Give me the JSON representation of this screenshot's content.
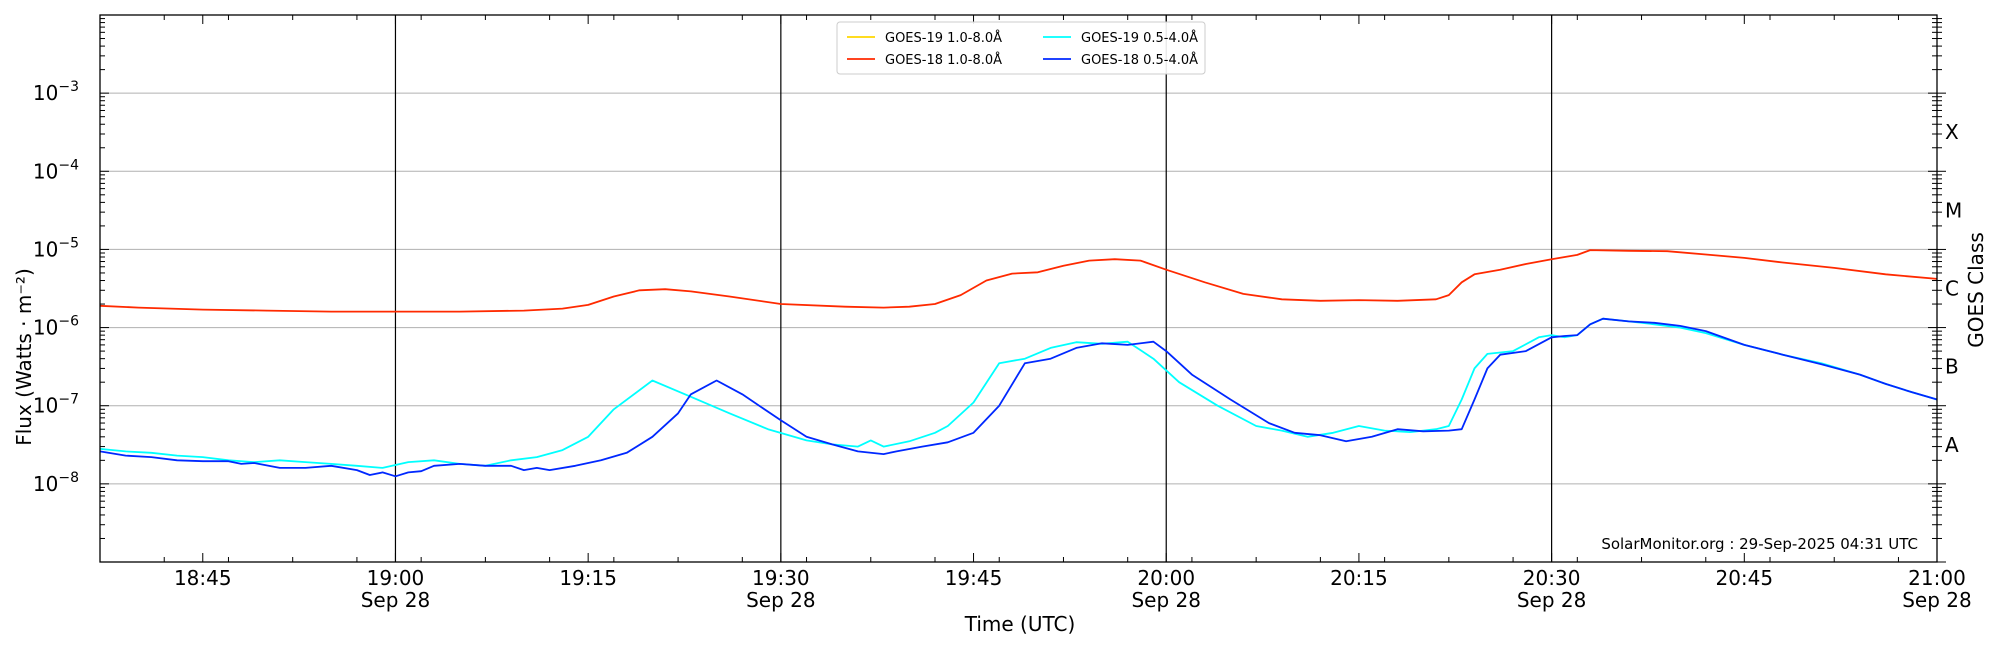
{
  "chart_data": {
    "type": "line",
    "ylabel": "Flux (Watts · m⁻²)",
    "ylabel_right": "GOES Class",
    "xlabel": "Time (UTC)",
    "watermark": "SolarMonitor.org : 29-Sep-2025 04:31 UTC",
    "y_scale": "log",
    "ylim": [
      1e-09,
      0.01
    ],
    "xlim": [
      "2025-09-28 18:37",
      "2025-09-28 21:00"
    ],
    "grid": "horizontal",
    "legend_position": "top-center",
    "y_ticks": [
      {
        "value": 1e-08,
        "exp": "−8"
      },
      {
        "value": 1e-07,
        "exp": "−7"
      },
      {
        "value": 1e-06,
        "exp": "−6"
      },
      {
        "value": 1e-05,
        "exp": "−5"
      },
      {
        "value": 0.0001,
        "exp": "−4"
      },
      {
        "value": 0.001,
        "exp": "−3"
      }
    ],
    "x_ticks": [
      {
        "time": "18:45",
        "date": ""
      },
      {
        "time": "19:00",
        "date": "Sep 28"
      },
      {
        "time": "19:15",
        "date": ""
      },
      {
        "time": "19:30",
        "date": "Sep 28"
      },
      {
        "time": "19:45",
        "date": ""
      },
      {
        "time": "20:00",
        "date": "Sep 28"
      },
      {
        "time": "20:15",
        "date": ""
      },
      {
        "time": "20:30",
        "date": "Sep 28"
      },
      {
        "time": "20:45",
        "date": ""
      },
      {
        "time": "21:00",
        "date": "Sep 28"
      }
    ],
    "vertical_lines": [
      "19:00",
      "19:30",
      "20:00",
      "20:30"
    ],
    "goes_classes": [
      {
        "label": "A",
        "flux": 1e-08
      },
      {
        "label": "B",
        "flux": 1e-07
      },
      {
        "label": "C",
        "flux": 1e-06
      },
      {
        "label": "M",
        "flux": 1e-05
      },
      {
        "label": "X",
        "flux": 0.0001
      }
    ],
    "series": [
      {
        "name": "GOES-19 1.0-8.0Å",
        "color": "#ffd700",
        "points": []
      },
      {
        "name": "GOES-19 0.5-4.0Å",
        "color": "#00ffff",
        "points": [
          [
            "18:37",
            2.8e-08
          ],
          [
            "18:39",
            2.6e-08
          ],
          [
            "18:41",
            2.5e-08
          ],
          [
            "18:43",
            2.3e-08
          ],
          [
            "18:45",
            2.2e-08
          ],
          [
            "18:47",
            2e-08
          ],
          [
            "18:49",
            1.9e-08
          ],
          [
            "18:51",
            2e-08
          ],
          [
            "18:53",
            1.9e-08
          ],
          [
            "18:55",
            1.8e-08
          ],
          [
            "18:57",
            1.7e-08
          ],
          [
            "18:59",
            1.6e-08
          ],
          [
            "19:01",
            1.9e-08
          ],
          [
            "19:03",
            2e-08
          ],
          [
            "19:05",
            1.8e-08
          ],
          [
            "19:07",
            1.7e-08
          ],
          [
            "19:09",
            2e-08
          ],
          [
            "19:11",
            2.2e-08
          ],
          [
            "19:13",
            2.7e-08
          ],
          [
            "19:15",
            4e-08
          ],
          [
            "19:17",
            9e-08
          ],
          [
            "19:20",
            2.1e-07
          ],
          [
            "19:23",
            1.3e-07
          ],
          [
            "19:26",
            8e-08
          ],
          [
            "19:29",
            5e-08
          ],
          [
            "19:32",
            3.6e-08
          ],
          [
            "19:34",
            3.2e-08
          ],
          [
            "19:36",
            3e-08
          ],
          [
            "19:37",
            3.6e-08
          ],
          [
            "19:38",
            3e-08
          ],
          [
            "19:40",
            3.5e-08
          ],
          [
            "19:42",
            4.5e-08
          ],
          [
            "19:43",
            5.5e-08
          ],
          [
            "19:45",
            1.1e-07
          ],
          [
            "19:47",
            3.5e-07
          ],
          [
            "19:49",
            4e-07
          ],
          [
            "19:51",
            5.5e-07
          ],
          [
            "19:53",
            6.5e-07
          ],
          [
            "19:55",
            6.2e-07
          ],
          [
            "19:57",
            6.6e-07
          ],
          [
            "19:59",
            4e-07
          ],
          [
            "20:01",
            2e-07
          ],
          [
            "20:04",
            1e-07
          ],
          [
            "20:07",
            5.5e-08
          ],
          [
            "20:09",
            4.8e-08
          ],
          [
            "20:11",
            4e-08
          ],
          [
            "20:13",
            4.5e-08
          ],
          [
            "20:15",
            5.5e-08
          ],
          [
            "20:17",
            4.8e-08
          ],
          [
            "20:19",
            4.6e-08
          ],
          [
            "20:21",
            5e-08
          ],
          [
            "20:22",
            5.5e-08
          ],
          [
            "20:23",
            1.2e-07
          ],
          [
            "20:24",
            3e-07
          ],
          [
            "20:25",
            4.6e-07
          ],
          [
            "20:27",
            5e-07
          ],
          [
            "20:29",
            7.5e-07
          ],
          [
            "20:30",
            8e-07
          ],
          [
            "20:31",
            7.5e-07
          ],
          [
            "20:32",
            8e-07
          ],
          [
            "20:33",
            1.1e-06
          ],
          [
            "20:34",
            1.3e-06
          ],
          [
            "20:36",
            1.2e-06
          ],
          [
            "20:38",
            1.1e-06
          ],
          [
            "20:40",
            1e-06
          ],
          [
            "20:42",
            8.5e-07
          ],
          [
            "20:45",
            6e-07
          ],
          [
            "20:48",
            4.5e-07
          ],
          [
            "20:51",
            3.5e-07
          ],
          [
            "20:54",
            2.5e-07
          ],
          [
            "20:56",
            1.9e-07
          ],
          [
            "20:58",
            1.5e-07
          ],
          [
            "21:00",
            1.2e-07
          ]
        ]
      },
      {
        "name": "GOES-18 1.0-8.0Å",
        "color": "#ff2a00",
        "points": [
          [
            "18:37",
            1.9e-06
          ],
          [
            "18:40",
            1.8e-06
          ],
          [
            "18:45",
            1.7e-06
          ],
          [
            "18:50",
            1.65e-06
          ],
          [
            "18:55",
            1.6e-06
          ],
          [
            "19:00",
            1.6e-06
          ],
          [
            "19:05",
            1.6e-06
          ],
          [
            "19:10",
            1.65e-06
          ],
          [
            "19:13",
            1.75e-06
          ],
          [
            "19:15",
            1.95e-06
          ],
          [
            "19:17",
            2.5e-06
          ],
          [
            "19:19",
            3e-06
          ],
          [
            "19:21",
            3.1e-06
          ],
          [
            "19:23",
            2.9e-06
          ],
          [
            "19:26",
            2.5e-06
          ],
          [
            "19:30",
            2e-06
          ],
          [
            "19:35",
            1.85e-06
          ],
          [
            "19:38",
            1.8e-06
          ],
          [
            "19:40",
            1.85e-06
          ],
          [
            "19:42",
            2e-06
          ],
          [
            "19:44",
            2.6e-06
          ],
          [
            "19:46",
            4e-06
          ],
          [
            "19:48",
            4.9e-06
          ],
          [
            "19:50",
            5.1e-06
          ],
          [
            "19:52",
            6.2e-06
          ],
          [
            "19:54",
            7.2e-06
          ],
          [
            "19:56",
            7.5e-06
          ],
          [
            "19:58",
            7.2e-06
          ],
          [
            "20:00",
            5.5e-06
          ],
          [
            "20:03",
            3.8e-06
          ],
          [
            "20:06",
            2.7e-06
          ],
          [
            "20:09",
            2.3e-06
          ],
          [
            "20:12",
            2.2e-06
          ],
          [
            "20:15",
            2.25e-06
          ],
          [
            "20:18",
            2.2e-06
          ],
          [
            "20:21",
            2.3e-06
          ],
          [
            "20:22",
            2.6e-06
          ],
          [
            "20:23",
            3.8e-06
          ],
          [
            "20:24",
            4.8e-06
          ],
          [
            "20:26",
            5.5e-06
          ],
          [
            "20:28",
            6.5e-06
          ],
          [
            "20:30",
            7.5e-06
          ],
          [
            "20:32",
            8.5e-06
          ],
          [
            "20:33",
            9.8e-06
          ],
          [
            "20:36",
            9.6e-06
          ],
          [
            "20:39",
            9.5e-06
          ],
          [
            "20:42",
            8.6e-06
          ],
          [
            "20:45",
            7.8e-06
          ],
          [
            "20:48",
            6.8e-06
          ],
          [
            "20:52",
            5.8e-06
          ],
          [
            "20:56",
            4.8e-06
          ],
          [
            "21:00",
            4.2e-06
          ]
        ]
      },
      {
        "name": "GOES-18 0.5-4.0Å",
        "color": "#0028ff",
        "points": [
          [
            "18:37",
            2.6e-08
          ],
          [
            "18:39",
            2.3e-08
          ],
          [
            "18:41",
            2.2e-08
          ],
          [
            "18:43",
            2e-08
          ],
          [
            "18:45",
            1.95e-08
          ],
          [
            "18:47",
            1.95e-08
          ],
          [
            "18:48",
            1.8e-08
          ],
          [
            "18:49",
            1.85e-08
          ],
          [
            "18:51",
            1.6e-08
          ],
          [
            "18:53",
            1.6e-08
          ],
          [
            "18:55",
            1.7e-08
          ],
          [
            "18:57",
            1.5e-08
          ],
          [
            "18:58",
            1.3e-08
          ],
          [
            "18:59",
            1.4e-08
          ],
          [
            "19:00",
            1.25e-08
          ],
          [
            "19:01",
            1.4e-08
          ],
          [
            "19:02",
            1.45e-08
          ],
          [
            "19:03",
            1.7e-08
          ],
          [
            "19:05",
            1.8e-08
          ],
          [
            "19:07",
            1.7e-08
          ],
          [
            "19:09",
            1.7e-08
          ],
          [
            "19:10",
            1.5e-08
          ],
          [
            "19:11",
            1.6e-08
          ],
          [
            "19:12",
            1.5e-08
          ],
          [
            "19:14",
            1.7e-08
          ],
          [
            "19:16",
            2e-08
          ],
          [
            "19:18",
            2.5e-08
          ],
          [
            "19:20",
            4e-08
          ],
          [
            "19:22",
            8e-08
          ],
          [
            "19:23",
            1.4e-07
          ],
          [
            "19:25",
            2.1e-07
          ],
          [
            "19:27",
            1.4e-07
          ],
          [
            "19:30",
            6.5e-08
          ],
          [
            "19:32",
            4e-08
          ],
          [
            "19:34",
            3.2e-08
          ],
          [
            "19:36",
            2.6e-08
          ],
          [
            "19:38",
            2.4e-08
          ],
          [
            "19:39",
            2.6e-08
          ],
          [
            "19:41",
            3e-08
          ],
          [
            "19:43",
            3.4e-08
          ],
          [
            "19:45",
            4.5e-08
          ],
          [
            "19:47",
            1e-07
          ],
          [
            "19:49",
            3.5e-07
          ],
          [
            "19:51",
            4e-07
          ],
          [
            "19:53",
            5.5e-07
          ],
          [
            "19:55",
            6.3e-07
          ],
          [
            "19:57",
            6e-07
          ],
          [
            "19:59",
            6.6e-07
          ],
          [
            "20:00",
            5e-07
          ],
          [
            "20:02",
            2.5e-07
          ],
          [
            "20:05",
            1.2e-07
          ],
          [
            "20:08",
            6e-08
          ],
          [
            "20:10",
            4.5e-08
          ],
          [
            "20:12",
            4.2e-08
          ],
          [
            "20:14",
            3.5e-08
          ],
          [
            "20:16",
            4e-08
          ],
          [
            "20:18",
            5e-08
          ],
          [
            "20:20",
            4.7e-08
          ],
          [
            "20:22",
            4.8e-08
          ],
          [
            "20:23",
            5e-08
          ],
          [
            "20:24",
            1.2e-07
          ],
          [
            "20:25",
            3e-07
          ],
          [
            "20:26",
            4.5e-07
          ],
          [
            "20:28",
            5e-07
          ],
          [
            "20:30",
            7.5e-07
          ],
          [
            "20:31",
            7.8e-07
          ],
          [
            "20:32",
            8e-07
          ],
          [
            "20:33",
            1.1e-06
          ],
          [
            "20:34",
            1.3e-06
          ],
          [
            "20:36",
            1.2e-06
          ],
          [
            "20:38",
            1.15e-06
          ],
          [
            "20:40",
            1.05e-06
          ],
          [
            "20:42",
            9e-07
          ],
          [
            "20:45",
            6e-07
          ],
          [
            "20:48",
            4.5e-07
          ],
          [
            "20:51",
            3.4e-07
          ],
          [
            "20:54",
            2.5e-07
          ],
          [
            "20:56",
            1.9e-07
          ],
          [
            "20:58",
            1.5e-07
          ],
          [
            "21:00",
            1.2e-07
          ]
        ]
      }
    ]
  }
}
